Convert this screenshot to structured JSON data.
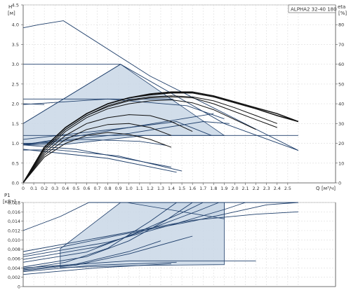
{
  "chart_data": [
    {
      "type": "line",
      "title": "ALPHA2 32-40 180",
      "ylabel": "H",
      "yunit": "[м]",
      "xlabel": "Q",
      "xunit": "[м³/ч]",
      "y2label": "eta",
      "y2unit": "[%]",
      "grid": true,
      "xlim": [
        0,
        2.7
      ],
      "ylim": [
        0,
        4.5
      ],
      "y2lim": [
        0,
        90
      ],
      "x_ticks": [
        "0",
        "0.1",
        "0.2",
        "0.3",
        "0.4",
        "0.5",
        "0.6",
        "0.7",
        "0.8",
        "0.9",
        "1.0",
        "1.1",
        "1.2",
        "1.3",
        "1.4",
        "1.5",
        "1.6",
        "1.7",
        "1.8",
        "1.9",
        "2.0",
        "2.1",
        "2.2",
        "2.3",
        "2.4",
        "2.5"
      ],
      "y_ticks": [
        "0.0",
        "0.5",
        "1.0",
        "1.5",
        "2.0",
        "2.5",
        "3.0",
        "3.5",
        "4.0",
        "4.5"
      ],
      "y2_ticks": [
        "0",
        "10",
        "20",
        "30",
        "40",
        "50",
        "60",
        "70",
        "80"
      ],
      "proportional_zone": [
        [
          0,
          1.5
        ],
        [
          0.92,
          3.0
        ],
        [
          1.9,
          1.2
        ],
        [
          1.15,
          1.2
        ],
        [
          0.35,
          0.96
        ],
        [
          0,
          0.96
        ]
      ],
      "series": [
        {
          "values": [
            [
              0,
              3.92
            ],
            [
              0.15,
              4.0
            ],
            [
              0.38,
              4.1
            ],
            [
              1.2,
              2.7
            ],
            [
              2.6,
              0.82
            ]
          ]
        },
        {
          "values": [
            [
              0,
              3.0
            ],
            [
              0.92,
              3.0
            ]
          ]
        },
        {
          "values": [
            [
              0,
              2.12
            ],
            [
              1.42,
              2.12
            ]
          ]
        },
        {
          "values": [
            [
              0,
              1.98
            ],
            [
              0.8,
              2.12
            ],
            [
              1.55,
              1.95
            ],
            [
              1.9,
              1.62
            ]
          ]
        },
        {
          "values": [
            [
              0,
              2.0
            ],
            [
              0.2,
              1.98
            ]
          ]
        },
        {
          "values": [
            [
              0,
              1.5
            ],
            [
              0.92,
              3.0
            ],
            [
              1.9,
              1.5
            ],
            [
              2.6,
              0.82
            ]
          ]
        },
        {
          "values": [
            [
              0,
              1.1
            ],
            [
              0.5,
              1.25
            ],
            [
              1.0,
              1.4
            ],
            [
              1.45,
              1.55
            ],
            [
              1.78,
              1.2
            ]
          ]
        },
        {
          "values": [
            [
              0,
              1.2
            ],
            [
              2.6,
              1.2
            ]
          ]
        },
        {
          "values": [
            [
              0,
              1.0
            ],
            [
              0.3,
              1.0
            ]
          ]
        },
        {
          "values": [
            [
              0,
              0.98
            ],
            [
              1.0,
              1.25
            ],
            [
              1.7,
              1.55
            ],
            [
              1.95,
              1.5
            ]
          ]
        },
        {
          "values": [
            [
              0,
              0.96
            ],
            [
              0.55,
              1.1
            ],
            [
              1.1,
              1.05
            ],
            [
              1.35,
              0.95
            ]
          ]
        },
        {
          "values": [
            [
              0,
              0.96
            ],
            [
              1.8,
              1.75
            ]
          ]
        },
        {
          "values": [
            [
              0,
              0.83
            ],
            [
              0.3,
              0.84
            ],
            [
              0.9,
              0.68
            ],
            [
              1.5,
              0.3
            ]
          ]
        },
        {
          "values": [
            [
              0,
              0.85
            ],
            [
              0.8,
              0.62
            ],
            [
              1.45,
              0.27
            ]
          ]
        },
        {
          "values": [
            [
              0,
              0.96
            ],
            [
              0.5,
              0.85
            ],
            [
              1.4,
              0.4
            ]
          ]
        }
      ],
      "efficiency_series": [
        {
          "values": [
            [
              0,
              0
            ],
            [
              0.2,
              18
            ],
            [
              0.4,
              28
            ],
            [
              0.6,
              35
            ],
            [
              0.8,
              40
            ],
            [
              1.0,
              43
            ],
            [
              1.2,
              45
            ],
            [
              1.4,
              46
            ],
            [
              1.6,
              46
            ],
            [
              1.8,
              44
            ],
            [
              2.0,
              41
            ],
            [
              2.2,
              38
            ],
            [
              2.4,
              35
            ],
            [
              2.6,
              31
            ]
          ]
        },
        {
          "values": [
            [
              0,
              0
            ],
            [
              0.2,
              18
            ],
            [
              0.4,
              28
            ],
            [
              0.6,
              35
            ],
            [
              0.8,
              40
            ],
            [
              1.0,
              43
            ],
            [
              1.2,
              44.5
            ],
            [
              1.4,
              45.5
            ],
            [
              1.6,
              45.5
            ],
            [
              1.8,
              43.5
            ],
            [
              2.0,
              40.5
            ],
            [
              2.2,
              37.5
            ],
            [
              2.4,
              34
            ],
            [
              2.6,
              31
            ]
          ]
        },
        {
          "values": [
            [
              0,
              0
            ],
            [
              0.2,
              17
            ],
            [
              0.4,
              27
            ],
            [
              0.6,
              34
            ],
            [
              0.8,
              39
            ],
            [
              1.0,
              42
            ],
            [
              1.2,
              43.5
            ],
            [
              1.4,
              44
            ],
            [
              1.6,
              43.5
            ],
            [
              1.8,
              41.5
            ],
            [
              2.0,
              38
            ],
            [
              2.2,
              34
            ],
            [
              2.4,
              30
            ]
          ]
        },
        {
          "values": [
            [
              0,
              0
            ],
            [
              0.2,
              17
            ],
            [
              0.4,
              27
            ],
            [
              0.6,
              34
            ],
            [
              0.8,
              38.5
            ],
            [
              1.0,
              41.5
            ],
            [
              1.2,
              43
            ],
            [
              1.4,
              43.5
            ],
            [
              1.6,
              43
            ],
            [
              1.8,
              40
            ],
            [
              2.0,
              36
            ],
            [
              2.2,
              32
            ],
            [
              2.4,
              28
            ]
          ]
        },
        {
          "values": [
            [
              0,
              0
            ],
            [
              0.2,
              16
            ],
            [
              0.4,
              26
            ],
            [
              0.6,
              33
            ],
            [
              0.8,
              37.5
            ],
            [
              1.0,
              40
            ],
            [
              1.2,
              41.5
            ],
            [
              1.4,
              42
            ],
            [
              1.6,
              40.5
            ],
            [
              1.8,
              37
            ],
            [
              2.0,
              32
            ],
            [
              2.2,
              27
            ]
          ]
        },
        {
          "values": [
            [
              0,
              0
            ],
            [
              0.2,
              15
            ],
            [
              0.4,
              24
            ],
            [
              0.6,
              30
            ],
            [
              0.8,
              33
            ],
            [
              1.0,
              34.5
            ],
            [
              1.2,
              34
            ],
            [
              1.4,
              31
            ],
            [
              1.6,
              26
            ]
          ]
        },
        {
          "values": [
            [
              0,
              0
            ],
            [
              0.2,
              14
            ],
            [
              0.4,
              22
            ],
            [
              0.6,
              27
            ],
            [
              0.8,
              29.5
            ],
            [
              1.0,
              30
            ],
            [
              1.2,
              28
            ],
            [
              1.4,
              24
            ]
          ]
        },
        {
          "values": [
            [
              0,
              0
            ],
            [
              0.2,
              13
            ],
            [
              0.4,
              20
            ],
            [
              0.6,
              24
            ],
            [
              0.8,
              25.5
            ],
            [
              1.0,
              24.5
            ],
            [
              1.2,
              22
            ],
            [
              1.4,
              18
            ]
          ]
        }
      ]
    },
    {
      "type": "line",
      "ylabel": "P1",
      "yunit": "[кВт]",
      "grid": true,
      "xlim": [
        0,
        2.7
      ],
      "ylim": [
        0,
        0.018
      ],
      "y_ticks": [
        "0",
        "0,002",
        "0,004",
        "0,006",
        "0,008",
        "0,010",
        "0,012",
        "0,014",
        "0,016",
        "0,018"
      ],
      "power_zones": [
        [
          [
            0.35,
            0.00405
          ],
          [
            1.15,
            0.00455
          ],
          [
            1.9,
            0.0047
          ],
          [
            1.9,
            0.018
          ],
          [
            0.92,
            0.018
          ],
          [
            0.35,
            0.0081
          ]
        ],
        [
          [
            0.98,
            0.018
          ],
          [
            1.9,
            0.018
          ],
          [
            1.9,
            0.0145
          ]
        ]
      ],
      "series": [
        {
          "values": [
            [
              0,
              0.012
            ],
            [
              0.35,
              0.015
            ],
            [
              0.62,
              0.018
            ],
            [
              2.6,
              0.018
            ]
          ]
        },
        {
          "values": [
            [
              0,
              0.0038
            ],
            [
              0.4,
              0.0052
            ],
            [
              0.8,
              0.0082
            ],
            [
              1.2,
              0.014
            ],
            [
              1.45,
              0.018
            ]
          ]
        },
        {
          "values": [
            [
              0,
              0.0042
            ],
            [
              0.6,
              0.0064
            ],
            [
              1.0,
              0.0098
            ],
            [
              1.35,
              0.0142
            ],
            [
              1.6,
              0.018
            ]
          ]
        },
        {
          "values": [
            [
              0,
              0.0052
            ],
            [
              0.6,
              0.0074
            ],
            [
              1.1,
              0.0118
            ],
            [
              1.5,
              0.0158
            ],
            [
              1.7,
              0.018
            ]
          ]
        },
        {
          "values": [
            [
              0,
              0.0058
            ],
            [
              0.7,
              0.0085
            ],
            [
              1.25,
              0.0128
            ],
            [
              1.65,
              0.0162
            ],
            [
              1.85,
              0.018
            ]
          ]
        },
        {
          "values": [
            [
              0,
              0.0064
            ],
            [
              0.8,
              0.0095
            ],
            [
              1.4,
              0.0132
            ],
            [
              1.9,
              0.0165
            ],
            [
              2.1,
              0.018
            ]
          ]
        },
        {
          "values": [
            [
              0,
              0.0068
            ],
            [
              0.9,
              0.011
            ],
            [
              1.6,
              0.014
            ],
            [
              2.3,
              0.0175
            ],
            [
              2.6,
              0.018
            ]
          ]
        },
        {
          "values": [
            [
              0,
              0.0075
            ],
            [
              0.8,
              0.0108
            ],
            [
              1.6,
              0.0142
            ],
            [
              2.2,
              0.0155
            ],
            [
              2.6,
              0.016
            ]
          ]
        },
        {
          "values": [
            [
              0,
              0.0036
            ],
            [
              0.5,
              0.0048
            ],
            [
              1.0,
              0.0075
            ],
            [
              1.3,
              0.0098
            ]
          ]
        },
        {
          "values": [
            [
              0,
              0.0034
            ],
            [
              0.5,
              0.0046
            ],
            [
              1.0,
              0.007
            ],
            [
              1.6,
              0.0108
            ]
          ]
        },
        {
          "values": [
            [
              0,
              0.004
            ],
            [
              1.0,
              0.0055
            ],
            [
              2.2,
              0.0055
            ]
          ]
        },
        {
          "values": [
            [
              0,
              0.0032
            ],
            [
              0.7,
              0.0046
            ],
            [
              1.45,
              0.0052
            ]
          ]
        },
        {
          "values": [
            [
              0,
              0.0026
            ],
            [
              0.7,
              0.004
            ],
            [
              1.4,
              0.0049
            ]
          ]
        }
      ]
    }
  ]
}
